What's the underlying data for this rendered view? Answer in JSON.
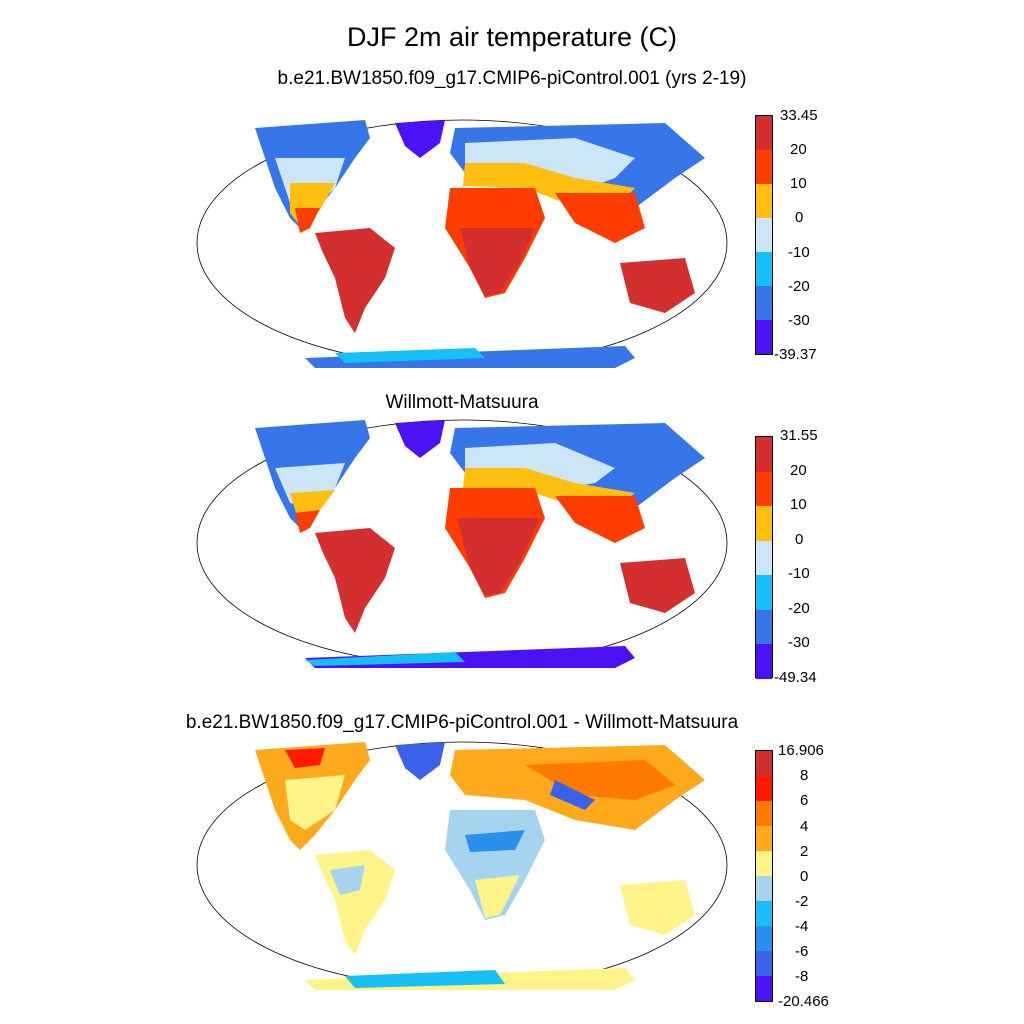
{
  "title": "DJF 2m air temperature (C)",
  "panels": [
    {
      "subtitle": "b.e21.BW1850.f09_g17.CMIP6-piControl.001 (yrs 2-19)",
      "colorbar": {
        "max_label": "33.45",
        "min_label": "-39.37",
        "ticks": [
          "20",
          "10",
          "0",
          "-10",
          "-20",
          "-30"
        ],
        "colors": [
          "#d32f2f",
          "#ff3d00",
          "#ffbf10",
          "#cce6f7",
          "#16bff5",
          "#3776e8",
          "#4a12f5"
        ]
      }
    },
    {
      "subtitle": "Willmott-Matsuura",
      "colorbar": {
        "max_label": "31.55",
        "min_label": "-49.34",
        "ticks": [
          "20",
          "10",
          "0",
          "-10",
          "-20",
          "-30"
        ],
        "colors": [
          "#d32f2f",
          "#ff3d00",
          "#ffbf10",
          "#cce6f7",
          "#16bff5",
          "#3776e8",
          "#4a12f5"
        ]
      }
    },
    {
      "subtitle": "b.e21.BW1850.f09_g17.CMIP6-piControl.001 - Willmott-Matsuura",
      "colorbar": {
        "max_label": "16.906",
        "min_label": "-20.466",
        "ticks": [
          "8",
          "6",
          "4",
          "2",
          "0",
          "-2",
          "-4",
          "-6",
          "-8"
        ],
        "colors": [
          "#d32f2f",
          "#ff1a00",
          "#ff7a00",
          "#ffaa1c",
          "#fff48a",
          "#a6d4ee",
          "#16bff5",
          "#2a90ee",
          "#3a62e8",
          "#4a12f5"
        ]
      }
    }
  ]
}
